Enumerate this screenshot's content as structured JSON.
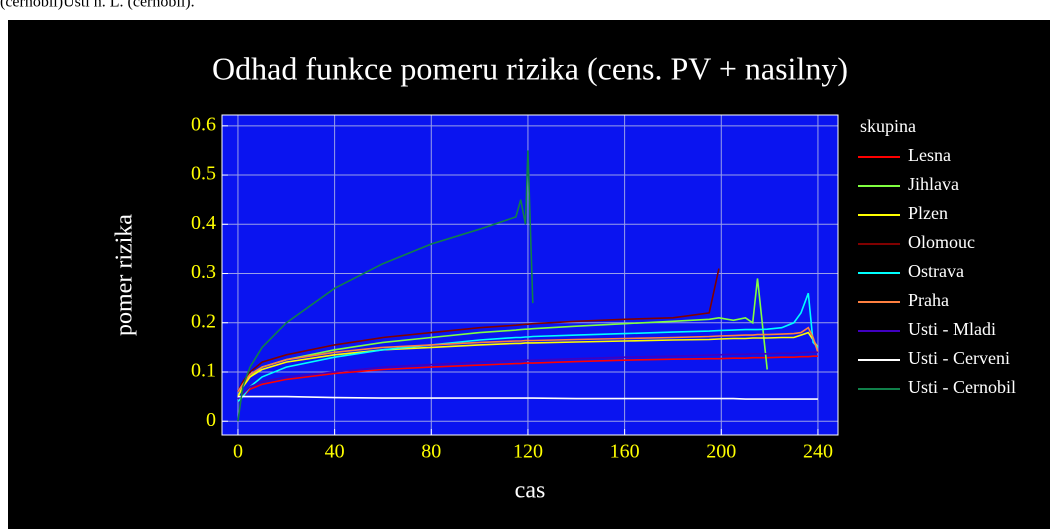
{
  "caption": "(cernobil)Usti n. L. (cernobil).",
  "chart_data": {
    "type": "line",
    "title": "Odhad funkce pomeru rizika (cens. PV + nasilny)",
    "xlabel": "cas",
    "ylabel": "pomer rizika",
    "legend_title": "skupina",
    "legend": "right",
    "grid": true,
    "xlim": [
      -6.6,
      248.3
    ],
    "ylim": [
      -0.028,
      0.622
    ],
    "xticks": [
      0,
      40,
      80,
      120,
      160,
      200,
      240
    ],
    "yticks": [
      0,
      0.1,
      0.2,
      0.3,
      0.4,
      0.5,
      0.6
    ],
    "x": [
      0,
      2,
      5,
      10,
      20,
      40,
      60,
      80,
      100,
      115,
      117,
      119,
      120,
      122,
      140,
      160,
      180,
      195,
      199,
      205,
      210,
      213,
      215,
      219,
      225,
      230,
      233,
      236,
      238,
      240
    ],
    "series": [
      {
        "name": "Lesna",
        "color": "#ff0000",
        "values": [
          0.04,
          0.05,
          0.065,
          0.075,
          0.085,
          0.097,
          0.105,
          0.11,
          0.114,
          0.117,
          0.117,
          0.118,
          0.118,
          0.118,
          0.121,
          0.124,
          0.126,
          0.127,
          0.127,
          0.128,
          0.128,
          0.129,
          0.129,
          0.129,
          0.13,
          0.13,
          0.131,
          0.131,
          0.132,
          0.132
        ]
      },
      {
        "name": "Jihlava",
        "color": "#80ff40",
        "values": [
          0.05,
          0.07,
          0.09,
          0.11,
          0.125,
          0.145,
          0.16,
          0.17,
          0.18,
          0.185,
          0.186,
          0.187,
          0.187,
          0.188,
          0.193,
          0.198,
          0.203,
          0.207,
          0.21,
          0.205,
          0.21,
          0.2,
          0.29,
          0.105,
          null,
          null,
          null,
          null,
          null,
          null
        ]
      },
      {
        "name": "Plzen",
        "color": "#ffff00",
        "values": [
          0.05,
          0.07,
          0.09,
          0.105,
          0.12,
          0.135,
          0.145,
          0.15,
          0.155,
          0.158,
          0.158,
          0.159,
          0.159,
          0.159,
          0.161,
          0.163,
          0.165,
          0.166,
          0.167,
          0.168,
          0.168,
          0.169,
          0.169,
          0.169,
          0.17,
          0.17,
          0.175,
          0.18,
          0.165,
          0.15
        ]
      },
      {
        "name": "Olomouc",
        "color": "#800000",
        "values": [
          0.06,
          0.08,
          0.1,
          0.12,
          0.135,
          0.155,
          0.17,
          0.18,
          0.19,
          0.195,
          0.196,
          0.197,
          0.197,
          0.198,
          0.203,
          0.207,
          0.21,
          0.22,
          0.31,
          null,
          null,
          null,
          null,
          null,
          null,
          null,
          null,
          null,
          null,
          null
        ]
      },
      {
        "name": "Ostrava",
        "color": "#00ffff",
        "values": [
          0.04,
          0.05,
          0.07,
          0.09,
          0.11,
          0.13,
          0.145,
          0.155,
          0.165,
          0.17,
          0.17,
          0.171,
          0.171,
          0.172,
          0.175,
          0.178,
          0.181,
          0.183,
          0.184,
          0.185,
          0.186,
          0.186,
          0.186,
          0.187,
          0.19,
          0.2,
          0.22,
          0.26,
          0.16,
          0.15
        ]
      },
      {
        "name": "Praha",
        "color": "#ff8040",
        "values": [
          0.06,
          0.075,
          0.095,
          0.11,
          0.125,
          0.14,
          0.15,
          0.155,
          0.16,
          0.163,
          0.163,
          0.164,
          0.164,
          0.164,
          0.166,
          0.168,
          0.17,
          0.172,
          0.173,
          0.174,
          0.175,
          0.175,
          0.176,
          0.176,
          0.177,
          0.178,
          0.18,
          0.19,
          0.17,
          0.14
        ]
      },
      {
        "name": "Usti - Mladi",
        "color": "#4000c0",
        "values": [
          0.045,
          0.055,
          0.07,
          0.08,
          0.09,
          0.1,
          0.11,
          0.115,
          0.12,
          0.123,
          0.123,
          0.124,
          0.124,
          0.124,
          0.127,
          0.13,
          0.132,
          0.134,
          0.135,
          0.136,
          0.136,
          0.137,
          0.137,
          0.137,
          0.138,
          0.138,
          0.139,
          0.14,
          0.14,
          0.14
        ]
      },
      {
        "name": "Usti - Cerveni",
        "color": "#ffffff",
        "values": [
          0.05,
          0.05,
          0.05,
          0.05,
          0.05,
          0.048,
          0.047,
          0.047,
          0.047,
          0.047,
          0.047,
          0.047,
          0.047,
          0.047,
          0.046,
          0.046,
          0.046,
          0.046,
          0.046,
          0.046,
          0.045,
          0.045,
          0.045,
          0.045,
          0.045,
          0.045,
          0.045,
          0.045,
          0.045,
          0.045
        ]
      },
      {
        "name": "Usti - Cernobil",
        "color": "#10804a",
        "values": [
          0,
          0.07,
          0.11,
          0.15,
          0.2,
          0.27,
          0.32,
          0.36,
          0.39,
          0.415,
          0.45,
          0.4,
          0.55,
          0.24,
          null,
          null,
          null,
          null,
          null,
          null,
          null,
          null,
          null,
          null,
          null,
          null,
          null,
          null,
          null,
          null
        ]
      }
    ]
  }
}
